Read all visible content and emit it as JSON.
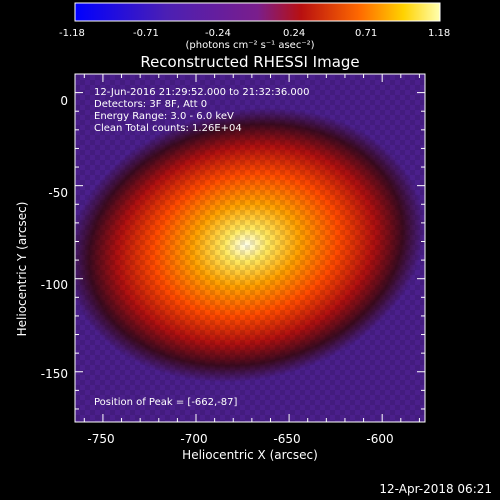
{
  "chart_data": {
    "type": "heatmap",
    "title": "Reconstructed RHESSI Image",
    "xlabel": "Heliocentric X (arcsec)",
    "ylabel": "Heliocentric Y (arcsec)",
    "xlim": [
      -765,
      -577
    ],
    "ylim": [
      -177,
      10
    ],
    "x_ticks": [
      -750,
      -700,
      -650,
      -600
    ],
    "y_ticks": [
      0,
      -50,
      -100,
      -150
    ],
    "peak": {
      "x": -662,
      "y": -87
    },
    "colorbar": {
      "ticks": [
        "-1.18",
        "-0.71",
        "-0.24",
        "0.24",
        "0.71",
        "1.18"
      ],
      "range": [
        -1.18,
        1.18
      ],
      "units_label": "(photons cm⁻² s⁻¹ asec⁻²)"
    }
  },
  "annotation": {
    "time_range": "12-Jun-2016 21:29:52.000 to 21:32:36.000",
    "detectors": "Detectors: 3F 8F, Att 0",
    "energy": "Energy Range: 3.0 - 6.0 keV",
    "method": "Clean     Total counts: 1.26E+04",
    "peak_text": "Position of Peak = [-662,-87]"
  },
  "footer": {
    "timestamp": "12-Apr-2018 06:21"
  },
  "colors": {
    "background": "#000000",
    "foreground": "#ffffff",
    "image_background": "#4b1f8c"
  }
}
